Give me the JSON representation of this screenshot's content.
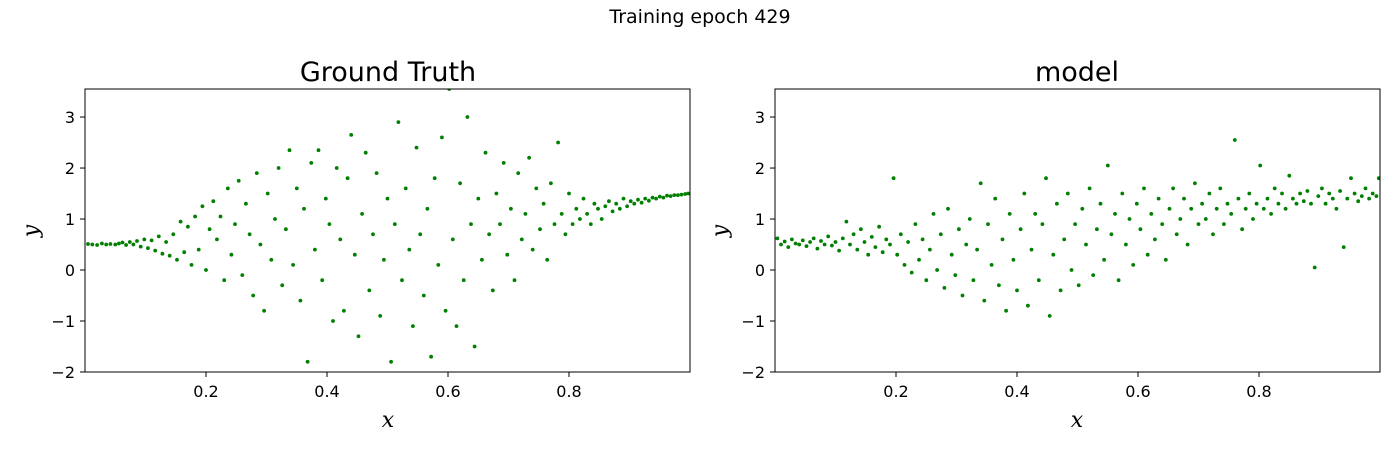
{
  "suptitle": "Training epoch 429",
  "colors": {
    "points": "#008000",
    "axes": "#000000",
    "background": "#ffffff"
  },
  "chart_data": [
    {
      "type": "scatter",
      "title": "Ground Truth",
      "xlabel": "x",
      "ylabel": "y",
      "xlim": [
        0.0,
        1.0
      ],
      "ylim": [
        -2.0,
        3.55
      ],
      "xticks": [
        0.2,
        0.4,
        0.6,
        0.8
      ],
      "yticks": [
        -2,
        -1,
        0,
        1,
        2,
        3
      ],
      "grid": false,
      "note": "",
      "points": [
        [
          0.005,
          0.51
        ],
        [
          0.012,
          0.5
        ],
        [
          0.02,
          0.49
        ],
        [
          0.028,
          0.52
        ],
        [
          0.035,
          0.5
        ],
        [
          0.042,
          0.51
        ],
        [
          0.05,
          0.5
        ],
        [
          0.056,
          0.52
        ],
        [
          0.062,
          0.54
        ],
        [
          0.068,
          0.49
        ],
        [
          0.074,
          0.55
        ],
        [
          0.08,
          0.5
        ],
        [
          0.086,
          0.57
        ],
        [
          0.092,
          0.46
        ],
        [
          0.098,
          0.6
        ],
        [
          0.104,
          0.43
        ],
        [
          0.11,
          0.58
        ],
        [
          0.116,
          0.38
        ],
        [
          0.122,
          0.66
        ],
        [
          0.128,
          0.32
        ],
        [
          0.134,
          0.55
        ],
        [
          0.14,
          0.28
        ],
        [
          0.146,
          0.7
        ],
        [
          0.152,
          0.2
        ],
        [
          0.158,
          0.95
        ],
        [
          0.164,
          0.35
        ],
        [
          0.17,
          0.85
        ],
        [
          0.176,
          0.1
        ],
        [
          0.182,
          1.05
        ],
        [
          0.188,
          0.4
        ],
        [
          0.194,
          1.25
        ],
        [
          0.2,
          0.0
        ],
        [
          0.206,
          0.8
        ],
        [
          0.212,
          1.35
        ],
        [
          0.218,
          0.6
        ],
        [
          0.224,
          1.05
        ],
        [
          0.23,
          -0.2
        ],
        [
          0.236,
          1.6
        ],
        [
          0.242,
          0.3
        ],
        [
          0.248,
          0.9
        ],
        [
          0.254,
          1.75
        ],
        [
          0.26,
          -0.1
        ],
        [
          0.266,
          1.3
        ],
        [
          0.272,
          0.7
        ],
        [
          0.278,
          -0.5
        ],
        [
          0.284,
          1.9
        ],
        [
          0.29,
          0.5
        ],
        [
          0.296,
          -0.8
        ],
        [
          0.302,
          1.5
        ],
        [
          0.308,
          0.2
        ],
        [
          0.314,
          1.0
        ],
        [
          0.32,
          2.0
        ],
        [
          0.326,
          -0.3
        ],
        [
          0.332,
          0.8
        ],
        [
          0.338,
          2.35
        ],
        [
          0.344,
          0.1
        ],
        [
          0.35,
          1.6
        ],
        [
          0.356,
          -0.6
        ],
        [
          0.362,
          1.2
        ],
        [
          0.368,
          -1.8
        ],
        [
          0.374,
          2.1
        ],
        [
          0.38,
          0.4
        ],
        [
          0.386,
          2.35
        ],
        [
          0.392,
          -0.2
        ],
        [
          0.398,
          1.4
        ],
        [
          0.404,
          0.9
        ],
        [
          0.41,
          -1.0
        ],
        [
          0.416,
          2.0
        ],
        [
          0.422,
          0.6
        ],
        [
          0.428,
          -0.8
        ],
        [
          0.434,
          1.8
        ],
        [
          0.44,
          2.65
        ],
        [
          0.446,
          0.3
        ],
        [
          0.452,
          -1.3
        ],
        [
          0.458,
          1.1
        ],
        [
          0.464,
          2.3
        ],
        [
          0.47,
          -0.4
        ],
        [
          0.476,
          0.7
        ],
        [
          0.482,
          1.9
        ],
        [
          0.488,
          -0.9
        ],
        [
          0.494,
          0.2
        ],
        [
          0.5,
          1.4
        ],
        [
          0.506,
          -1.8
        ],
        [
          0.512,
          0.9
        ],
        [
          0.518,
          2.9
        ],
        [
          0.524,
          -0.2
        ],
        [
          0.53,
          1.6
        ],
        [
          0.536,
          0.4
        ],
        [
          0.542,
          -1.1
        ],
        [
          0.548,
          2.4
        ],
        [
          0.554,
          0.7
        ],
        [
          0.56,
          -0.5
        ],
        [
          0.566,
          1.2
        ],
        [
          0.572,
          -1.7
        ],
        [
          0.578,
          1.8
        ],
        [
          0.584,
          0.1
        ],
        [
          0.59,
          2.6
        ],
        [
          0.596,
          -0.8
        ],
        [
          0.602,
          3.55
        ],
        [
          0.608,
          0.6
        ],
        [
          0.614,
          -1.1
        ],
        [
          0.62,
          1.7
        ],
        [
          0.626,
          -0.2
        ],
        [
          0.632,
          3.0
        ],
        [
          0.638,
          0.9
        ],
        [
          0.644,
          -1.5
        ],
        [
          0.65,
          1.4
        ],
        [
          0.656,
          0.2
        ],
        [
          0.662,
          2.3
        ],
        [
          0.668,
          0.7
        ],
        [
          0.674,
          -0.4
        ],
        [
          0.68,
          1.5
        ],
        [
          0.686,
          0.9
        ],
        [
          0.692,
          2.1
        ],
        [
          0.698,
          0.3
        ],
        [
          0.704,
          1.2
        ],
        [
          0.71,
          -0.2
        ],
        [
          0.716,
          1.9
        ],
        [
          0.722,
          0.6
        ],
        [
          0.728,
          1.1
        ],
        [
          0.734,
          2.2
        ],
        [
          0.74,
          0.4
        ],
        [
          0.746,
          1.6
        ],
        [
          0.752,
          0.8
        ],
        [
          0.758,
          1.3
        ],
        [
          0.764,
          0.2
        ],
        [
          0.77,
          1.7
        ],
        [
          0.776,
          0.9
        ],
        [
          0.782,
          2.5
        ],
        [
          0.788,
          1.1
        ],
        [
          0.794,
          0.7
        ],
        [
          0.8,
          1.5
        ],
        [
          0.806,
          0.9
        ],
        [
          0.812,
          1.2
        ],
        [
          0.818,
          1.0
        ],
        [
          0.824,
          1.4
        ],
        [
          0.83,
          1.1
        ],
        [
          0.836,
          0.9
        ],
        [
          0.842,
          1.3
        ],
        [
          0.848,
          1.2
        ],
        [
          0.854,
          1.0
        ],
        [
          0.86,
          1.25
        ],
        [
          0.866,
          1.35
        ],
        [
          0.872,
          1.15
        ],
        [
          0.878,
          1.3
        ],
        [
          0.884,
          1.2
        ],
        [
          0.89,
          1.4
        ],
        [
          0.896,
          1.25
        ],
        [
          0.902,
          1.35
        ],
        [
          0.908,
          1.3
        ],
        [
          0.914,
          1.38
        ],
        [
          0.92,
          1.32
        ],
        [
          0.926,
          1.4
        ],
        [
          0.932,
          1.36
        ],
        [
          0.938,
          1.42
        ],
        [
          0.944,
          1.4
        ],
        [
          0.95,
          1.44
        ],
        [
          0.956,
          1.42
        ],
        [
          0.962,
          1.46
        ],
        [
          0.968,
          1.45
        ],
        [
          0.974,
          1.47
        ],
        [
          0.98,
          1.47
        ],
        [
          0.986,
          1.48
        ],
        [
          0.992,
          1.49
        ],
        [
          0.997,
          1.5
        ]
      ]
    },
    {
      "type": "scatter",
      "title": "model",
      "xlabel": "x",
      "ylabel": "y",
      "xlim": [
        0.0,
        1.0
      ],
      "ylim": [
        -2.0,
        3.55
      ],
      "xticks": [
        0.2,
        0.4,
        0.6,
        0.8
      ],
      "yticks": [
        -2,
        -1,
        0,
        1,
        2,
        3
      ],
      "grid": false,
      "note": "",
      "points": [
        [
          0.004,
          0.62
        ],
        [
          0.01,
          0.5
        ],
        [
          0.016,
          0.56
        ],
        [
          0.022,
          0.45
        ],
        [
          0.028,
          0.6
        ],
        [
          0.034,
          0.52
        ],
        [
          0.04,
          0.5
        ],
        [
          0.046,
          0.58
        ],
        [
          0.052,
          0.47
        ],
        [
          0.058,
          0.55
        ],
        [
          0.064,
          0.62
        ],
        [
          0.07,
          0.42
        ],
        [
          0.076,
          0.57
        ],
        [
          0.082,
          0.5
        ],
        [
          0.088,
          0.66
        ],
        [
          0.094,
          0.48
        ],
        [
          0.1,
          0.55
        ],
        [
          0.106,
          0.38
        ],
        [
          0.112,
          0.62
        ],
        [
          0.118,
          0.95
        ],
        [
          0.124,
          0.5
        ],
        [
          0.13,
          0.7
        ],
        [
          0.136,
          0.4
        ],
        [
          0.142,
          0.8
        ],
        [
          0.148,
          0.55
        ],
        [
          0.154,
          0.3
        ],
        [
          0.16,
          0.65
        ],
        [
          0.166,
          0.45
        ],
        [
          0.172,
          0.85
        ],
        [
          0.178,
          0.35
        ],
        [
          0.184,
          0.6
        ],
        [
          0.19,
          0.5
        ],
        [
          0.196,
          1.8
        ],
        [
          0.202,
          0.3
        ],
        [
          0.208,
          0.7
        ],
        [
          0.214,
          0.1
        ],
        [
          0.22,
          0.55
        ],
        [
          0.226,
          -0.05
        ],
        [
          0.232,
          0.9
        ],
        [
          0.238,
          0.2
        ],
        [
          0.244,
          0.6
        ],
        [
          0.25,
          -0.2
        ],
        [
          0.256,
          0.4
        ],
        [
          0.262,
          1.1
        ],
        [
          0.268,
          0.0
        ],
        [
          0.274,
          0.7
        ],
        [
          0.28,
          -0.35
        ],
        [
          0.286,
          1.2
        ],
        [
          0.292,
          0.3
        ],
        [
          0.298,
          -0.1
        ],
        [
          0.304,
          0.8
        ],
        [
          0.31,
          -0.5
        ],
        [
          0.316,
          0.5
        ],
        [
          0.322,
          1.0
        ],
        [
          0.328,
          -0.2
        ],
        [
          0.334,
          0.4
        ],
        [
          0.34,
          1.7
        ],
        [
          0.346,
          -0.6
        ],
        [
          0.352,
          0.9
        ],
        [
          0.358,
          0.1
        ],
        [
          0.364,
          1.4
        ],
        [
          0.37,
          -0.3
        ],
        [
          0.376,
          0.6
        ],
        [
          0.382,
          -0.8
        ],
        [
          0.388,
          1.1
        ],
        [
          0.394,
          0.2
        ],
        [
          0.4,
          -0.4
        ],
        [
          0.406,
          0.8
        ],
        [
          0.412,
          1.5
        ],
        [
          0.418,
          -0.7
        ],
        [
          0.424,
          0.4
        ],
        [
          0.43,
          1.1
        ],
        [
          0.436,
          -0.2
        ],
        [
          0.442,
          0.9
        ],
        [
          0.448,
          1.8
        ],
        [
          0.454,
          -0.9
        ],
        [
          0.46,
          0.3
        ],
        [
          0.466,
          1.3
        ],
        [
          0.472,
          -0.4
        ],
        [
          0.478,
          0.6
        ],
        [
          0.484,
          1.5
        ],
        [
          0.49,
          0.0
        ],
        [
          0.496,
          0.9
        ],
        [
          0.502,
          -0.3
        ],
        [
          0.508,
          1.2
        ],
        [
          0.514,
          0.5
        ],
        [
          0.52,
          1.6
        ],
        [
          0.526,
          -0.1
        ],
        [
          0.532,
          0.8
        ],
        [
          0.538,
          1.3
        ],
        [
          0.544,
          0.2
        ],
        [
          0.55,
          2.05
        ],
        [
          0.556,
          0.7
        ],
        [
          0.562,
          1.1
        ],
        [
          0.568,
          -0.2
        ],
        [
          0.574,
          1.5
        ],
        [
          0.58,
          0.5
        ],
        [
          0.586,
          1.0
        ],
        [
          0.592,
          0.1
        ],
        [
          0.598,
          1.3
        ],
        [
          0.604,
          0.8
        ],
        [
          0.61,
          1.6
        ],
        [
          0.616,
          0.3
        ],
        [
          0.622,
          1.1
        ],
        [
          0.628,
          0.6
        ],
        [
          0.634,
          1.4
        ],
        [
          0.64,
          0.9
        ],
        [
          0.646,
          0.2
        ],
        [
          0.652,
          1.2
        ],
        [
          0.658,
          1.6
        ],
        [
          0.664,
          0.7
        ],
        [
          0.67,
          1.0
        ],
        [
          0.676,
          1.4
        ],
        [
          0.682,
          0.5
        ],
        [
          0.688,
          1.2
        ],
        [
          0.694,
          1.7
        ],
        [
          0.7,
          0.9
        ],
        [
          0.706,
          1.3
        ],
        [
          0.712,
          1.0
        ],
        [
          0.718,
          1.5
        ],
        [
          0.724,
          0.7
        ],
        [
          0.73,
          1.2
        ],
        [
          0.736,
          1.6
        ],
        [
          0.742,
          0.9
        ],
        [
          0.748,
          1.3
        ],
        [
          0.754,
          1.1
        ],
        [
          0.76,
          2.55
        ],
        [
          0.766,
          1.4
        ],
        [
          0.772,
          0.8
        ],
        [
          0.778,
          1.2
        ],
        [
          0.784,
          1.5
        ],
        [
          0.79,
          1.0
        ],
        [
          0.796,
          1.3
        ],
        [
          0.802,
          2.05
        ],
        [
          0.808,
          1.2
        ],
        [
          0.814,
          1.4
        ],
        [
          0.82,
          1.1
        ],
        [
          0.826,
          1.6
        ],
        [
          0.832,
          1.3
        ],
        [
          0.838,
          1.5
        ],
        [
          0.844,
          1.2
        ],
        [
          0.85,
          1.85
        ],
        [
          0.856,
          1.4
        ],
        [
          0.862,
          1.3
        ],
        [
          0.868,
          1.5
        ],
        [
          0.874,
          1.35
        ],
        [
          0.88,
          1.55
        ],
        [
          0.886,
          1.3
        ],
        [
          0.892,
          0.05
        ],
        [
          0.898,
          1.45
        ],
        [
          0.904,
          1.6
        ],
        [
          0.91,
          1.3
        ],
        [
          0.916,
          1.5
        ],
        [
          0.922,
          1.4
        ],
        [
          0.928,
          1.2
        ],
        [
          0.934,
          1.55
        ],
        [
          0.94,
          0.45
        ],
        [
          0.946,
          1.4
        ],
        [
          0.952,
          1.8
        ],
        [
          0.958,
          1.5
        ],
        [
          0.964,
          1.35
        ],
        [
          0.97,
          1.45
        ],
        [
          0.976,
          1.6
        ],
        [
          0.982,
          1.4
        ],
        [
          0.988,
          1.5
        ],
        [
          0.994,
          1.45
        ],
        [
          0.998,
          1.8
        ]
      ]
    }
  ]
}
